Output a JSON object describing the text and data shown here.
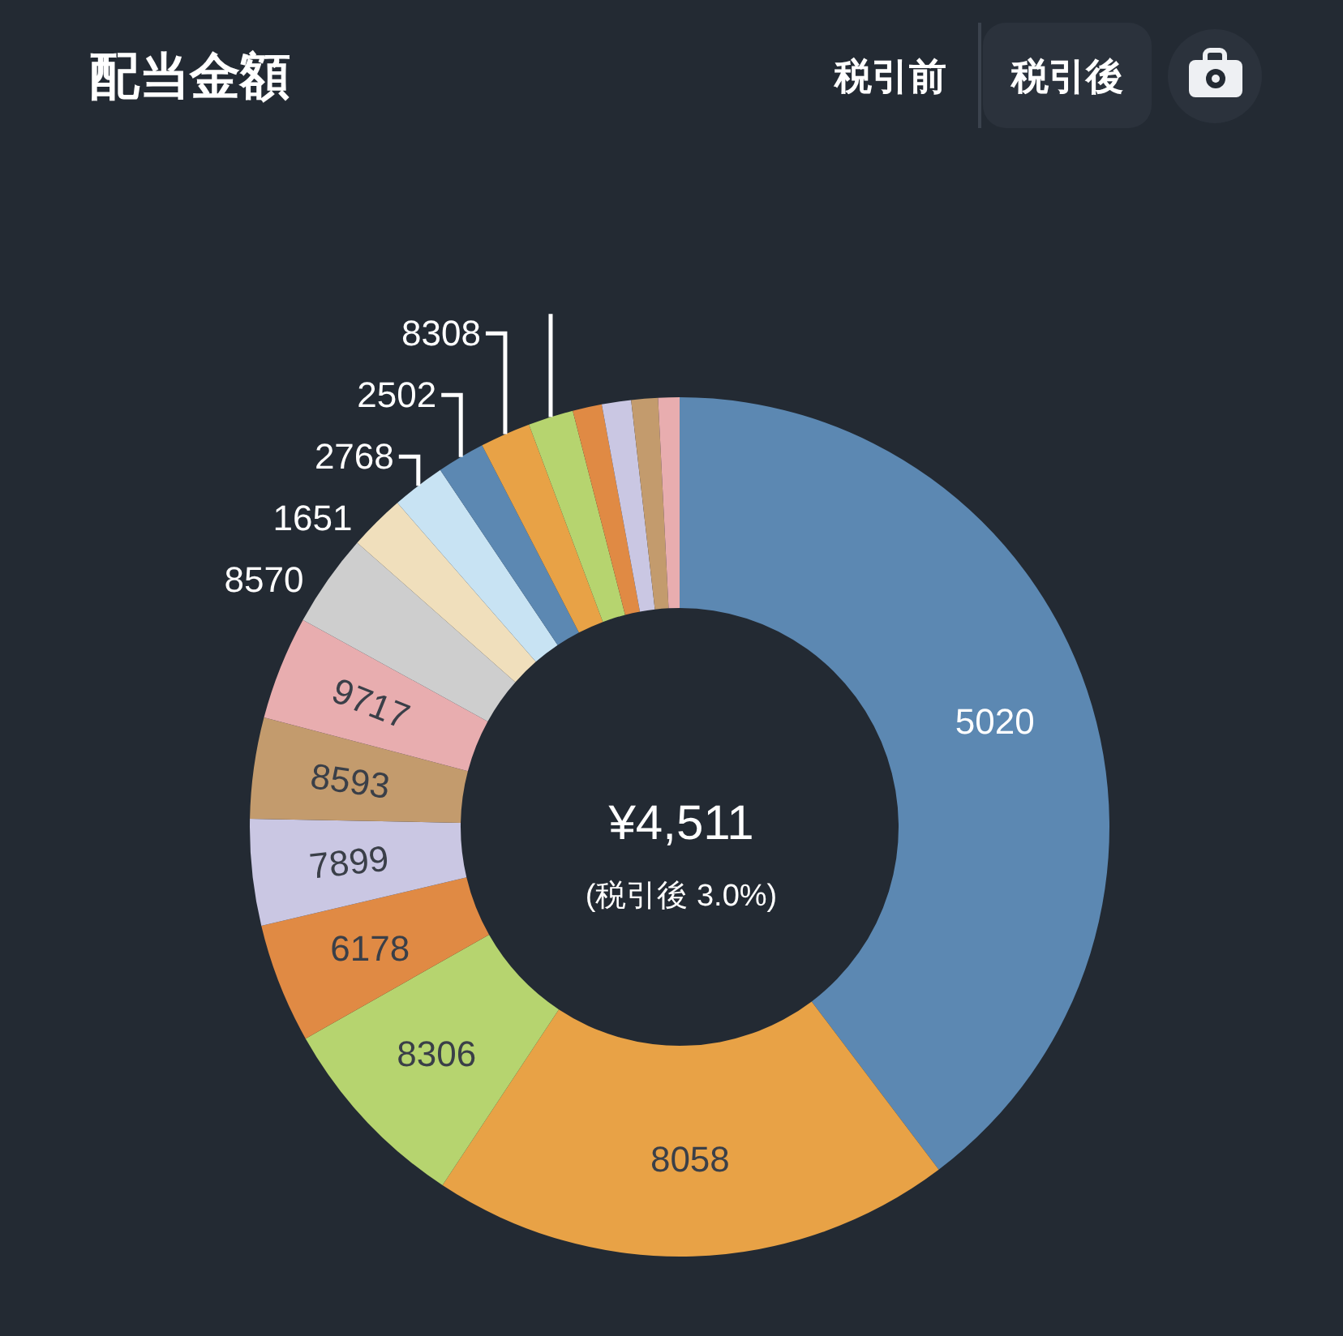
{
  "chart_data": {
    "type": "donut",
    "title": "配当金額",
    "categories": [
      "5020",
      "8058",
      "8306",
      "6178",
      "7899",
      "8593",
      "9717",
      "8570",
      "1651",
      "2768",
      "2502",
      "8308",
      null,
      null,
      null,
      null,
      null
    ],
    "values": [
      39.7,
      19.6,
      7.5,
      4.5,
      4.0,
      3.8,
      3.9,
      3.5,
      2.1,
      2.0,
      1.8,
      1.9,
      1.7,
      1.1,
      1.1,
      1.0,
      0.8
    ],
    "colors": [
      "#5c88b2",
      "#e8a246",
      "#b6d46f",
      "#e08a44",
      "#cac7e3",
      "#c39b6d",
      "#e8adaf",
      "#cecece",
      "#f0dfbc",
      "#c8e3f3",
      "#5c88b2",
      "#e8a246",
      "#b6d46f",
      "#e08a44",
      "#cac7e3",
      "#c39b6d",
      "#e8adaf"
    ],
    "annotations": [
      "¥4,511",
      "(税引後 3.0%)",
      "税引前",
      "税引後"
    ]
  }
}
